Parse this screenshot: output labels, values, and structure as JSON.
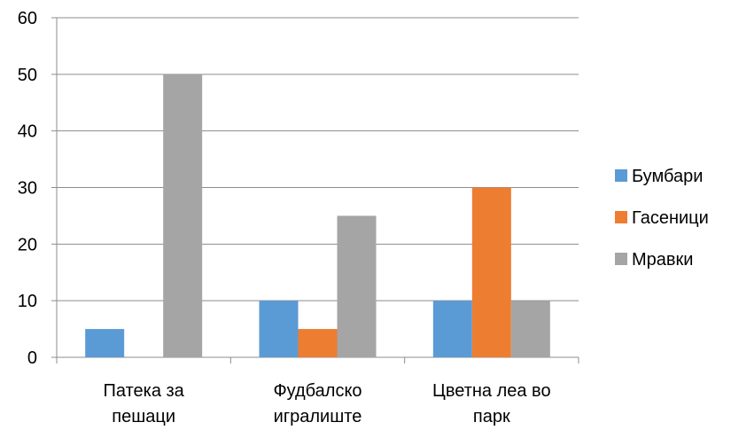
{
  "chart_data": {
    "type": "bar",
    "categories": [
      [
        "Патека за",
        "пешаци"
      ],
      [
        "Фудбалско",
        "игралиште"
      ],
      [
        "Цветна леа во",
        "парк"
      ]
    ],
    "series": [
      {
        "name": "Бумбари",
        "color": "#5B9BD5",
        "values": [
          5,
          10,
          10
        ]
      },
      {
        "name": "Гасеници",
        "color": "#ED7D31",
        "values": [
          0,
          5,
          30
        ]
      },
      {
        "name": "Мравки",
        "color": "#A5A5A5",
        "values": [
          50,
          25,
          10
        ]
      }
    ],
    "yticks": [
      0,
      10,
      20,
      30,
      40,
      50,
      60
    ],
    "ylim": [
      0,
      60
    ],
    "grid": true,
    "legend_position": "right",
    "title": "",
    "xlabel": "",
    "ylabel": ""
  }
}
